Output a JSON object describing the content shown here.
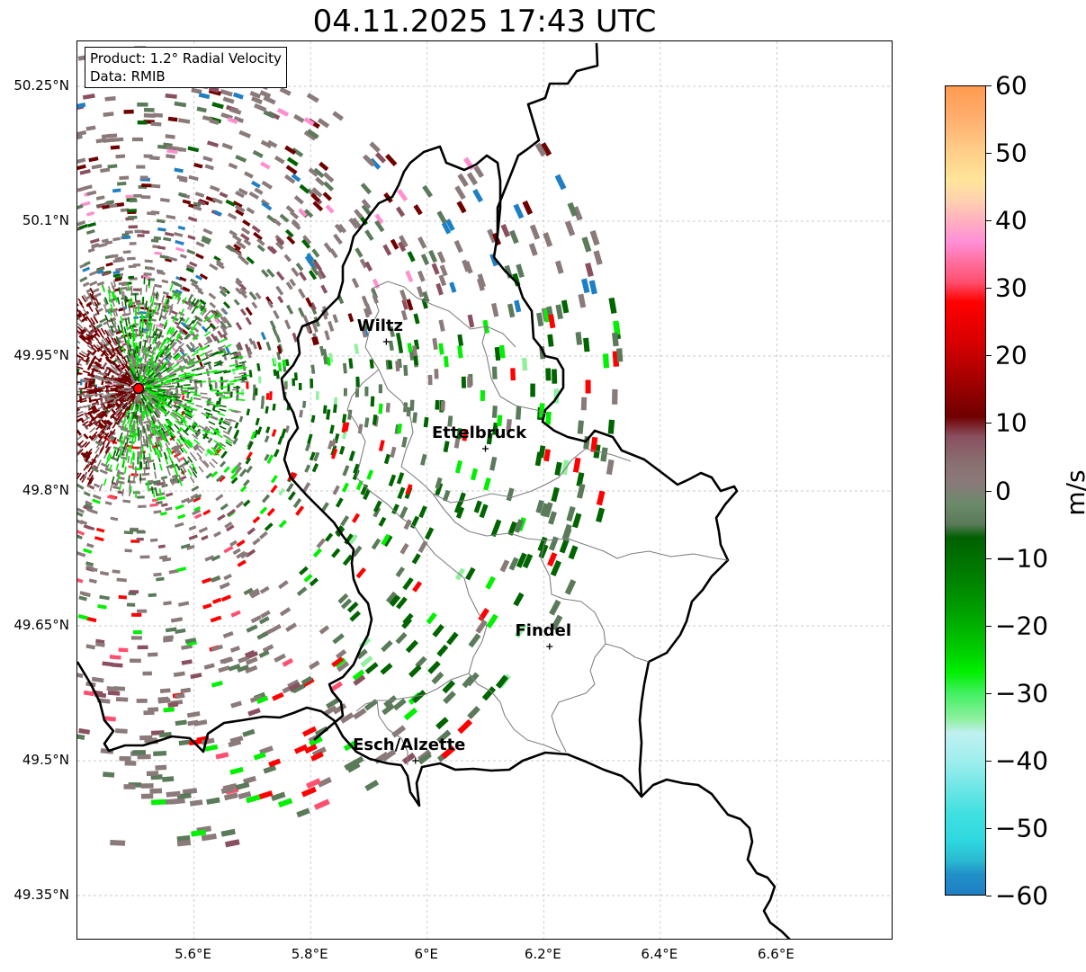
{
  "title": "04.11.2025 17:43 UTC",
  "info": {
    "product": "Product: 1.2° Radial Velocity",
    "data": "Data: RMIB"
  },
  "lat_ticks": [
    "50.25°N",
    "50.1°N",
    "49.95°N",
    "49.8°N",
    "49.65°N",
    "49.5°N",
    "49.35°N"
  ],
  "lon_ticks": [
    "5.6°E",
    "5.8°E",
    "6°E",
    "6.2°E",
    "6.4°E",
    "6.6°E"
  ],
  "cities": [
    {
      "name": "Wiltz",
      "lon": 5.93,
      "lat": 49.966
    },
    {
      "name": "Ettelbruck",
      "lon": 6.1,
      "lat": 49.847
    },
    {
      "name": "Findel",
      "lon": 6.21,
      "lat": 49.627
    },
    {
      "name": "Esch/Alzette",
      "lon": 5.98,
      "lat": 49.5
    }
  ],
  "radar_site": {
    "lon": 5.505,
    "lat": 49.914
  },
  "colorbar": {
    "label": "m/s",
    "ticks": [
      "60",
      "50",
      "40",
      "30",
      "20",
      "10",
      "0",
      "−10",
      "−20",
      "−30",
      "−40",
      "−50",
      "−60"
    ],
    "range": [
      -60,
      60
    ],
    "colors": {
      "neg_far": "#1f7fc4",
      "cyan": "#2ee0e0",
      "light_cyan": "#b8f0f0",
      "light_green": "#90f0a0",
      "bright_green": "#00f000",
      "dark_green": "#006400",
      "gray_green": "#5a7a5a",
      "gray": "#8a7a7a",
      "mauve": "#8a5060",
      "dark_red": "#700000",
      "red": "#ff0000",
      "pink_red": "#ff5070",
      "pink": "#ff90d0",
      "light_pink": "#ffc0c0",
      "light_yellow": "#ffe090",
      "orange": "#ffa050"
    }
  },
  "map_extent": {
    "lon": [
      5.4,
      6.8
    ],
    "lat": [
      49.3,
      50.3
    ]
  }
}
